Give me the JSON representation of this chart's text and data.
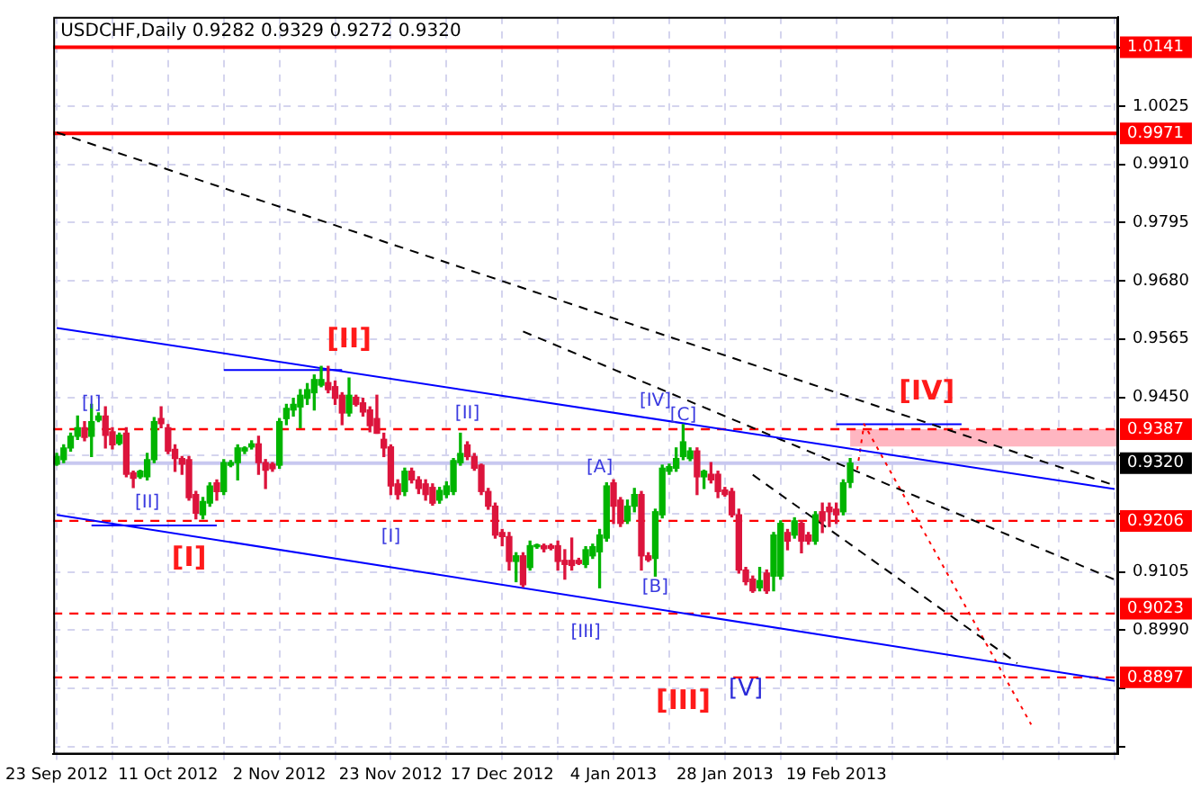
{
  "chart_data": {
    "type": "candlestick",
    "title": "USDCHF,Daily 0.9282 0.9329 0.9272 0.9320",
    "categories": [
      "23 Sep 2012",
      null,
      null,
      null,
      null,
      null,
      null,
      null,
      null,
      null,
      null,
      null,
      null,
      null,
      null,
      null,
      "11 Oct 2012",
      null,
      null,
      null,
      null,
      null,
      null,
      null,
      null,
      null,
      null,
      null,
      null,
      null,
      null,
      null,
      "2 Nov 2012",
      null,
      null,
      null,
      null,
      null,
      null,
      null,
      null,
      null,
      null,
      null,
      null,
      null,
      null,
      null,
      "23 Nov 2012",
      null,
      null,
      null,
      null,
      null,
      null,
      null,
      null,
      null,
      null,
      null,
      null,
      null,
      null,
      null,
      "17 Dec 2012",
      null,
      null,
      null,
      null,
      null,
      null,
      null,
      null,
      null,
      null,
      null,
      null,
      null,
      null,
      null,
      "4 Jan 2013",
      null,
      null,
      null,
      null,
      null,
      null,
      null,
      null,
      null,
      null,
      null,
      null,
      null,
      null,
      null,
      "28 Jan 2013",
      null,
      null,
      null,
      null,
      null,
      null,
      null,
      null,
      null,
      null,
      null,
      null,
      null,
      null,
      null,
      "19 Feb 2013",
      null,
      null,
      null,
      null,
      null,
      null,
      null,
      null,
      null,
      null,
      null,
      null,
      null,
      null,
      null,
      null,
      null,
      null,
      null,
      null,
      null,
      null,
      null,
      null,
      null,
      null,
      null,
      null,
      null,
      null,
      null,
      null,
      null,
      null,
      null,
      null,
      null,
      null,
      null,
      null
    ],
    "ohlc": [
      [
        0.9318,
        0.9339,
        0.9316,
        0.9333
      ],
      [
        0.9327,
        0.9356,
        0.9321,
        0.935
      ],
      [
        0.935,
        0.9379,
        0.9344,
        0.9373
      ],
      [
        0.9373,
        0.9413,
        0.9367,
        0.939
      ],
      [
        0.939,
        0.9402,
        0.9364,
        0.9371
      ],
      [
        0.9373,
        0.9436,
        0.9333,
        0.9402
      ],
      [
        0.9405,
        0.9419,
        0.9402,
        0.9413
      ],
      [
        0.9413,
        0.9431,
        0.935,
        0.9375
      ],
      [
        0.9382,
        0.939,
        0.9348,
        0.9356
      ],
      [
        0.9359,
        0.9379,
        0.9356,
        0.9375
      ],
      [
        0.9379,
        0.939,
        0.9293,
        0.9298
      ],
      [
        0.9301,
        0.9304,
        0.9272,
        0.929
      ],
      [
        0.9293,
        0.9306,
        0.929,
        0.9304
      ],
      [
        0.9293,
        0.9339,
        0.9287,
        0.9327
      ],
      [
        0.9327,
        0.941,
        0.9321,
        0.9402
      ],
      [
        0.9408,
        0.9431,
        0.939,
        0.9398
      ],
      [
        0.939,
        0.9396,
        0.9339,
        0.9344
      ],
      [
        0.9347,
        0.9356,
        0.9304,
        0.9329
      ],
      [
        0.9329,
        0.9333,
        0.9298,
        0.9318
      ],
      [
        0.9327,
        0.9333,
        0.9247,
        0.9252
      ],
      [
        0.9258,
        0.9264,
        0.921,
        0.9221
      ],
      [
        0.9218,
        0.9252,
        0.921,
        0.9244
      ],
      [
        0.9241,
        0.9281,
        0.9235,
        0.9275
      ],
      [
        0.9281,
        0.9287,
        0.9247,
        0.9264
      ],
      [
        0.9264,
        0.9327,
        0.9258,
        0.9321
      ],
      [
        0.9316,
        0.9325,
        0.9313,
        0.9321
      ],
      [
        0.9321,
        0.9356,
        0.9287,
        0.935
      ],
      [
        0.9344,
        0.9352,
        0.9339,
        0.935
      ],
      [
        0.9352,
        0.9364,
        0.9348,
        0.9358
      ],
      [
        0.9358,
        0.9373,
        0.9298,
        0.9321
      ],
      [
        0.9321,
        0.9327,
        0.927,
        0.9306
      ],
      [
        0.9318,
        0.9321,
        0.9304,
        0.9309
      ],
      [
        0.9316,
        0.9408,
        0.931,
        0.9402
      ],
      [
        0.9408,
        0.9436,
        0.9396,
        0.9428
      ],
      [
        0.9425,
        0.9448,
        0.9413,
        0.9436
      ],
      [
        0.9431,
        0.9465,
        0.939,
        0.9454
      ],
      [
        0.9448,
        0.9477,
        0.9436,
        0.9465
      ],
      [
        0.9459,
        0.9494,
        0.9425,
        0.9485
      ],
      [
        0.9474,
        0.9511,
        0.9471,
        0.9485
      ],
      [
        0.9479,
        0.9511,
        0.9459,
        0.9465
      ],
      [
        0.9471,
        0.9482,
        0.9436,
        0.9448
      ],
      [
        0.9454,
        0.9459,
        0.9396,
        0.9419
      ],
      [
        0.9419,
        0.9488,
        0.9413,
        0.9454
      ],
      [
        0.945,
        0.9454,
        0.9433,
        0.9436
      ],
      [
        0.9439,
        0.9448,
        0.9413,
        0.9421
      ],
      [
        0.9425,
        0.9431,
        0.9382,
        0.9394
      ],
      [
        0.9408,
        0.9454,
        0.9379,
        0.9379
      ],
      [
        0.9367,
        0.9379,
        0.9333,
        0.935
      ],
      [
        0.9352,
        0.9356,
        0.9258,
        0.9275
      ],
      [
        0.9279,
        0.9287,
        0.9249,
        0.9258
      ],
      [
        0.9264,
        0.931,
        0.9256,
        0.9304
      ],
      [
        0.9304,
        0.931,
        0.9281,
        0.9287
      ],
      [
        0.9287,
        0.9293,
        0.926,
        0.927
      ],
      [
        0.9279,
        0.9287,
        0.9247,
        0.9258
      ],
      [
        0.9272,
        0.9279,
        0.9237,
        0.9241
      ],
      [
        0.9247,
        0.9272,
        0.9241,
        0.9266
      ],
      [
        0.9258,
        0.9283,
        0.9252,
        0.9275
      ],
      [
        0.9264,
        0.9329,
        0.9258,
        0.9325
      ],
      [
        0.9321,
        0.9379,
        0.9316,
        0.9339
      ],
      [
        0.9356,
        0.9362,
        0.9327,
        0.9333
      ],
      [
        0.9333,
        0.9339,
        0.9306,
        0.931
      ],
      [
        0.9316,
        0.9318,
        0.9258,
        0.9264
      ],
      [
        0.9264,
        0.927,
        0.9229,
        0.9235
      ],
      [
        0.9235,
        0.9241,
        0.9172,
        0.9178
      ],
      [
        0.9183,
        0.9189,
        0.9157,
        0.9175
      ],
      [
        0.9175,
        0.9183,
        0.9109,
        0.9126
      ],
      [
        0.9126,
        0.9143,
        0.9086,
        0.9137
      ],
      [
        0.9137,
        0.9143,
        0.9076,
        0.908
      ],
      [
        0.9114,
        0.9166,
        0.9109,
        0.9157
      ],
      [
        0.9155,
        0.916,
        0.9152,
        0.9157
      ],
      [
        0.9157,
        0.916,
        0.9145,
        0.9151
      ],
      [
        0.9157,
        0.916,
        0.9149,
        0.9152
      ],
      [
        0.9157,
        0.9166,
        0.9109,
        0.9126
      ],
      [
        0.9128,
        0.9149,
        0.9091,
        0.912
      ],
      [
        0.9128,
        0.9172,
        0.9109,
        0.9118
      ],
      [
        0.9128,
        0.9132,
        0.912,
        0.9122
      ],
      [
        0.912,
        0.9155,
        0.9114,
        0.9149
      ],
      [
        0.9137,
        0.916,
        0.9132,
        0.9155
      ],
      [
        0.9145,
        0.9189,
        0.9074,
        0.9178
      ],
      [
        0.9172,
        0.9281,
        0.9166,
        0.9275
      ],
      [
        0.9281,
        0.9287,
        0.9201,
        0.9235
      ],
      [
        0.9247,
        0.9252,
        0.9195,
        0.9201
      ],
      [
        0.9206,
        0.9247,
        0.9201,
        0.9235
      ],
      [
        0.9235,
        0.927,
        0.9224,
        0.9258
      ],
      [
        0.9258,
        0.9264,
        0.9109,
        0.9137
      ],
      [
        0.9137,
        0.9143,
        0.9126,
        0.9129
      ],
      [
        0.9132,
        0.9229,
        0.9097,
        0.9224
      ],
      [
        0.9218,
        0.9316,
        0.9212,
        0.931
      ],
      [
        0.9304,
        0.9318,
        0.9298,
        0.9313
      ],
      [
        0.931,
        0.935,
        0.9304,
        0.9329
      ],
      [
        0.9333,
        0.9396,
        0.9327,
        0.9362
      ],
      [
        0.9329,
        0.935,
        0.9325,
        0.9344
      ],
      [
        0.9344,
        0.935,
        0.9258,
        0.9293
      ],
      [
        0.9293,
        0.9306,
        0.927,
        0.9304
      ],
      [
        0.9298,
        0.9321,
        0.9281,
        0.9287
      ],
      [
        0.9298,
        0.9304,
        0.9252,
        0.9264
      ],
      [
        0.9267,
        0.9272,
        0.9255,
        0.9258
      ],
      [
        0.9264,
        0.927,
        0.9214,
        0.9218
      ],
      [
        0.9218,
        0.9229,
        0.9103,
        0.9109
      ],
      [
        0.9109,
        0.9114,
        0.908,
        0.9086
      ],
      [
        0.9091,
        0.9097,
        0.9065,
        0.9068
      ],
      [
        0.9074,
        0.9114,
        0.9068,
        0.9088
      ],
      [
        0.9103,
        0.9109,
        0.9063,
        0.9068
      ],
      [
        0.9097,
        0.9183,
        0.9068,
        0.9178
      ],
      [
        0.9097,
        0.9206,
        0.9091,
        0.9201
      ],
      [
        0.9183,
        0.9189,
        0.9149,
        0.9166
      ],
      [
        0.9178,
        0.9212,
        0.9172,
        0.9206
      ],
      [
        0.9201,
        0.9206,
        0.9143,
        0.9166
      ],
      [
        0.9178,
        0.9183,
        0.916,
        0.9166
      ],
      [
        0.9166,
        0.9224,
        0.916,
        0.9218
      ],
      [
        0.9224,
        0.9241,
        0.9183,
        0.9206
      ],
      [
        0.9233,
        0.9241,
        0.9195,
        0.9224
      ],
      [
        0.9229,
        0.9241,
        0.9201,
        0.9218
      ],
      [
        0.9224,
        0.9287,
        0.9218,
        0.9281
      ],
      [
        0.9282,
        0.9329,
        0.9272,
        0.932
      ],
      null,
      null,
      null,
      null,
      null,
      null,
      null,
      null,
      null,
      null,
      null,
      null,
      null,
      null,
      null,
      null,
      null,
      null,
      null,
      null,
      null,
      null,
      null,
      null,
      null,
      null,
      null,
      null,
      null,
      null,
      null,
      null,
      null,
      null,
      null,
      null,
      null,
      null
    ],
    "series": [
      {
        "type": "line",
        "color": "#0000ff",
        "line_style": "solid",
        "values": [
          0.9587,
          null,
          null,
          null,
          null,
          null,
          null,
          null,
          null,
          null,
          null,
          null,
          null,
          null,
          null,
          null,
          null,
          null,
          null,
          null,
          null,
          null,
          null,
          null,
          null,
          null,
          null,
          null,
          null,
          null,
          null,
          null,
          null,
          null,
          null,
          null,
          null,
          null,
          null,
          null,
          null,
          null,
          null,
          null,
          null,
          null,
          null,
          null,
          null,
          null,
          null,
          null,
          null,
          null,
          null,
          null,
          null,
          null,
          null,
          null,
          null,
          null,
          null,
          null,
          null,
          null,
          null,
          null,
          null,
          null,
          null,
          null,
          null,
          null,
          null,
          null,
          null,
          null,
          null,
          null,
          null,
          null,
          null,
          null,
          null,
          null,
          null,
          null,
          null,
          null,
          null,
          null,
          null,
          null,
          null,
          null,
          null,
          null,
          null,
          null,
          null,
          null,
          null,
          null,
          null,
          null,
          null,
          null,
          null,
          null,
          null,
          null,
          null,
          null,
          null,
          null,
          null,
          null,
          null,
          null,
          null,
          null,
          null,
          null,
          null,
          null,
          null,
          null,
          null,
          null,
          null,
          null,
          null,
          null,
          null,
          null,
          null,
          null,
          null,
          null,
          null,
          null,
          null,
          null,
          null,
          null,
          null,
          null,
          null,
          null,
          null,
          null,
          0.9269
        ]
      },
      {
        "type": "line",
        "color": "#0000ff",
        "line_style": "solid",
        "values": [
          0.9218,
          null,
          null,
          null,
          null,
          null,
          null,
          null,
          null,
          null,
          null,
          null,
          null,
          null,
          null,
          null,
          null,
          null,
          null,
          null,
          null,
          null,
          null,
          null,
          null,
          null,
          null,
          null,
          null,
          null,
          null,
          null,
          null,
          null,
          null,
          null,
          null,
          null,
          null,
          null,
          null,
          null,
          null,
          null,
          null,
          null,
          null,
          null,
          null,
          null,
          null,
          null,
          null,
          null,
          null,
          null,
          null,
          null,
          null,
          null,
          null,
          null,
          null,
          null,
          null,
          null,
          null,
          null,
          null,
          null,
          null,
          null,
          null,
          null,
          null,
          null,
          null,
          null,
          null,
          null,
          null,
          null,
          null,
          null,
          null,
          null,
          null,
          null,
          null,
          null,
          null,
          null,
          null,
          null,
          null,
          null,
          null,
          null,
          null,
          null,
          null,
          null,
          null,
          null,
          null,
          null,
          null,
          null,
          null,
          null,
          null,
          null,
          null,
          null,
          null,
          null,
          null,
          null,
          null,
          null,
          null,
          null,
          null,
          null,
          null,
          null,
          null,
          null,
          null,
          null,
          null,
          null,
          null,
          null,
          null,
          null,
          null,
          null,
          null,
          null,
          null,
          null,
          null,
          null,
          null,
          null,
          null,
          null,
          null,
          null,
          null,
          null,
          0.889
        ]
      },
      {
        "type": "line",
        "color": "#000000",
        "line_style": "dashed",
        "values": [
          0.9973,
          null,
          null,
          null,
          null,
          null,
          null,
          null,
          null,
          null,
          null,
          null,
          null,
          null,
          null,
          null,
          null,
          null,
          null,
          null,
          null,
          null,
          null,
          null,
          null,
          null,
          null,
          null,
          null,
          null,
          null,
          null,
          null,
          null,
          null,
          null,
          null,
          null,
          null,
          null,
          null,
          null,
          null,
          null,
          null,
          null,
          null,
          null,
          null,
          null,
          null,
          null,
          null,
          null,
          null,
          null,
          null,
          null,
          null,
          null,
          null,
          null,
          null,
          null,
          null,
          null,
          null,
          null,
          null,
          null,
          null,
          null,
          null,
          null,
          null,
          null,
          null,
          null,
          null,
          null,
          null,
          null,
          null,
          null,
          null,
          null,
          null,
          null,
          null,
          null,
          null,
          null,
          null,
          null,
          null,
          null,
          null,
          null,
          null,
          null,
          null,
          null,
          null,
          null,
          null,
          null,
          null,
          null,
          null,
          null,
          null,
          null,
          null,
          null,
          null,
          null,
          null,
          null,
          null,
          null,
          null,
          null,
          null,
          null,
          null,
          null,
          null,
          null,
          null,
          null,
          null,
          null,
          null,
          null,
          null,
          null,
          null,
          null,
          null,
          null,
          null,
          null,
          null,
          null,
          null,
          null,
          null,
          null,
          null,
          null,
          null,
          null,
          0.9276
        ]
      },
      {
        "type": "line",
        "color": "#000000",
        "line_style": "dashed",
        "values": [
          null,
          null,
          null,
          null,
          null,
          null,
          null,
          null,
          null,
          null,
          null,
          null,
          null,
          null,
          null,
          null,
          null,
          null,
          null,
          null,
          null,
          null,
          null,
          null,
          null,
          null,
          null,
          null,
          null,
          null,
          null,
          null,
          null,
          null,
          null,
          null,
          null,
          null,
          null,
          null,
          null,
          null,
          null,
          null,
          null,
          null,
          null,
          null,
          null,
          null,
          null,
          null,
          null,
          null,
          null,
          null,
          null,
          null,
          null,
          null,
          null,
          null,
          null,
          null,
          null,
          null,
          null,
          0.958,
          null,
          null,
          null,
          null,
          null,
          null,
          null,
          null,
          null,
          null,
          null,
          null,
          null,
          null,
          null,
          null,
          null,
          null,
          null,
          null,
          null,
          null,
          null,
          null,
          null,
          null,
          null,
          null,
          null,
          null,
          null,
          null,
          null,
          null,
          null,
          null,
          null,
          null,
          null,
          null,
          null,
          null,
          null,
          null,
          null,
          null,
          null,
          null,
          null,
          null,
          null,
          null,
          null,
          null,
          null,
          null,
          null,
          null,
          null,
          null,
          null,
          null,
          null,
          null,
          null,
          null,
          null,
          null,
          null,
          null,
          null,
          null,
          null,
          null,
          null,
          null,
          null,
          null,
          null,
          null,
          null,
          null,
          null,
          null,
          0.909
        ]
      },
      {
        "type": "line",
        "color": "#000000",
        "line_style": "dashed",
        "values": [
          null,
          null,
          null,
          null,
          null,
          null,
          null,
          null,
          null,
          null,
          null,
          null,
          null,
          null,
          null,
          null,
          null,
          null,
          null,
          null,
          null,
          null,
          null,
          null,
          null,
          null,
          null,
          null,
          null,
          null,
          null,
          null,
          null,
          null,
          null,
          null,
          null,
          null,
          null,
          null,
          null,
          null,
          null,
          null,
          null,
          null,
          null,
          null,
          null,
          null,
          null,
          null,
          null,
          null,
          null,
          null,
          null,
          null,
          null,
          null,
          null,
          null,
          null,
          null,
          null,
          null,
          null,
          null,
          null,
          null,
          null,
          null,
          null,
          null,
          null,
          null,
          null,
          null,
          null,
          null,
          null,
          null,
          null,
          null,
          null,
          null,
          null,
          null,
          null,
          null,
          null,
          null,
          null,
          null,
          null,
          null,
          null,
          null,
          null,
          null,
          0.9297,
          null,
          null,
          null,
          null,
          null,
          null,
          null,
          null,
          null,
          null,
          null,
          null,
          null,
          null,
          null,
          null,
          null,
          null,
          null,
          null,
          null,
          null,
          null,
          null,
          null,
          null,
          null,
          null,
          null,
          null,
          null,
          null,
          null,
          null,
          null,
          null,
          null,
          0.8925,
          null,
          null,
          null,
          null,
          null,
          null,
          null,
          null,
          null,
          null,
          null,
          null,
          null,
          null
        ]
      },
      {
        "type": "line",
        "color": "#ff0000",
        "line_style": "dotted",
        "values": [
          null,
          null,
          null,
          null,
          null,
          null,
          null,
          null,
          null,
          null,
          null,
          null,
          null,
          null,
          null,
          null,
          null,
          null,
          null,
          null,
          null,
          null,
          null,
          null,
          null,
          null,
          null,
          null,
          null,
          null,
          null,
          null,
          null,
          null,
          null,
          null,
          null,
          null,
          null,
          null,
          null,
          null,
          null,
          null,
          null,
          null,
          null,
          null,
          null,
          null,
          null,
          null,
          null,
          null,
          null,
          null,
          null,
          null,
          null,
          null,
          null,
          null,
          null,
          null,
          null,
          null,
          null,
          null,
          null,
          null,
          null,
          null,
          null,
          null,
          null,
          null,
          null,
          null,
          null,
          null,
          null,
          null,
          null,
          null,
          null,
          null,
          null,
          null,
          null,
          null,
          null,
          null,
          null,
          null,
          null,
          null,
          null,
          null,
          null,
          null,
          null,
          null,
          null,
          null,
          null,
          null,
          null,
          null,
          null,
          null,
          null,
          null,
          null,
          null,
          null,
          0.9307,
          0.9397,
          null,
          null,
          null,
          null,
          null,
          null,
          null,
          null,
          null,
          null,
          null,
          null,
          null,
          null,
          null,
          null,
          null,
          null,
          null,
          null,
          null,
          null,
          null,
          0.8804,
          null,
          null,
          null,
          null,
          null,
          null,
          null,
          null,
          null,
          null,
          null,
          null
        ]
      },
      {
        "type": "line",
        "color": "#0000ff",
        "line_style": "solid",
        "values": [
          null,
          null,
          null,
          null,
          null,
          null,
          null,
          null,
          null,
          null,
          null,
          null,
          null,
          null,
          null,
          null,
          null,
          null,
          null,
          null,
          null,
          null,
          null,
          null,
          0.9504,
          null,
          null,
          null,
          null,
          null,
          null,
          null,
          null,
          null,
          null,
          null,
          null,
          null,
          null,
          null,
          null,
          0.9504,
          null,
          null,
          null,
          null,
          null,
          null,
          null,
          null,
          null,
          null,
          null,
          null,
          null,
          null,
          null,
          null,
          null,
          null,
          null,
          null,
          null,
          null,
          null,
          null,
          null,
          null,
          null,
          null,
          null,
          null,
          null,
          null,
          null,
          null,
          null,
          null,
          null,
          null,
          null,
          null,
          null,
          null,
          null,
          null,
          null,
          null,
          null,
          null,
          null,
          null,
          null,
          null,
          null,
          null,
          null,
          null,
          null,
          null,
          null,
          null,
          null,
          null,
          null,
          null,
          null,
          null,
          null,
          null,
          null,
          null,
          null,
          null,
          null,
          null,
          null,
          null,
          null,
          null,
          null,
          null,
          null,
          null,
          null,
          null,
          null,
          null,
          null,
          null,
          null,
          null,
          null,
          null,
          null,
          null,
          null,
          null,
          null,
          null,
          null,
          null,
          null,
          null,
          null,
          null,
          null,
          null,
          null,
          null,
          null,
          null,
          null
        ]
      },
      {
        "type": "line",
        "color": "#0000ff",
        "line_style": "solid",
        "values": [
          null,
          null,
          null,
          null,
          null,
          0.9197,
          null,
          null,
          null,
          null,
          null,
          null,
          null,
          null,
          null,
          null,
          null,
          null,
          null,
          null,
          null,
          null,
          null,
          0.9197,
          null,
          null,
          null,
          null,
          null,
          null,
          null,
          null,
          null,
          null,
          null,
          null,
          null,
          null,
          null,
          null,
          null,
          null,
          null,
          null,
          null,
          null,
          null,
          null,
          null,
          null,
          null,
          null,
          null,
          null,
          null,
          null,
          null,
          null,
          null,
          null,
          null,
          null,
          null,
          null,
          null,
          null,
          null,
          null,
          null,
          null,
          null,
          null,
          null,
          null,
          null,
          null,
          null,
          null,
          null,
          null,
          null,
          null,
          null,
          null,
          null,
          null,
          null,
          null,
          null,
          null,
          null,
          null,
          null,
          null,
          null,
          null,
          null,
          null,
          null,
          null,
          null,
          null,
          null,
          null,
          null,
          null,
          null,
          null,
          null,
          null,
          null,
          null,
          null,
          null,
          null,
          null,
          null,
          null,
          null,
          null,
          null,
          null,
          null,
          null,
          null,
          null,
          null,
          null,
          null,
          null,
          null,
          null,
          null,
          null,
          null,
          null,
          null,
          null,
          null,
          null,
          null,
          null,
          null,
          null,
          null,
          null,
          null,
          null,
          null,
          null,
          null,
          null,
          null
        ]
      },
      {
        "type": "line",
        "color": "#0000ff",
        "line_style": "solid",
        "values": [
          null,
          null,
          null,
          null,
          null,
          null,
          null,
          null,
          null,
          null,
          null,
          null,
          null,
          null,
          null,
          null,
          null,
          null,
          null,
          null,
          null,
          null,
          null,
          null,
          null,
          null,
          null,
          null,
          null,
          null,
          null,
          null,
          null,
          null,
          null,
          null,
          null,
          null,
          null,
          null,
          null,
          null,
          null,
          null,
          null,
          null,
          null,
          null,
          null,
          null,
          null,
          null,
          null,
          null,
          null,
          null,
          null,
          null,
          null,
          null,
          null,
          null,
          null,
          null,
          null,
          null,
          null,
          null,
          null,
          null,
          null,
          null,
          null,
          null,
          null,
          null,
          null,
          null,
          null,
          null,
          null,
          null,
          null,
          null,
          null,
          null,
          null,
          null,
          null,
          null,
          null,
          null,
          null,
          null,
          null,
          null,
          null,
          null,
          null,
          null,
          null,
          null,
          null,
          null,
          null,
          null,
          null,
          null,
          null,
          null,
          null,
          null,
          0.9397,
          null,
          null,
          null,
          null,
          null,
          null,
          null,
          null,
          null,
          null,
          null,
          null,
          null,
          null,
          null,
          null,
          null,
          0.9397,
          null,
          null,
          null,
          null,
          null,
          null,
          null,
          null,
          null,
          null,
          null,
          null,
          null,
          null,
          null,
          null,
          null,
          null,
          null,
          null,
          null,
          null
        ]
      }
    ],
    "ylim": [
      0.8745,
      1.0201
    ],
    "yticks": [
      {
        "value": 1.014,
        "label": null
      },
      1.0025,
      {
        "value": 0.991,
        "label": "0.9910"
      },
      0.9795,
      {
        "value": 0.968,
        "label": "0.9680"
      },
      0.9565,
      {
        "value": 0.945,
        "label": "0.9450"
      },
      {
        "value": 0.9335,
        "label": null
      },
      {
        "value": 0.922,
        "label": null
      },
      0.9105,
      {
        "value": 0.899,
        "label": "0.8990"
      },
      {
        "value": 0.8875,
        "label": null
      },
      {
        "value": 0.876,
        "label": null
      }
    ],
    "grid": true,
    "ref_lines": [
      {
        "axis": "y",
        "value": 1.0141,
        "label": "1.0141",
        "color": "#ff0000",
        "line_style": "solid"
      },
      {
        "axis": "y",
        "value": 0.9971,
        "label": "0.9971",
        "color": "#ff0000",
        "line_style": "solid"
      },
      {
        "axis": "y",
        "value": 0.9387,
        "label": "0.9387",
        "color": "#ff0000",
        "line_style": "dashed"
      },
      {
        "axis": "y",
        "value": 0.932,
        "label": "0.9320",
        "color": "#c8c8f0",
        "line_style": "solid"
      },
      {
        "axis": "y",
        "value": 0.9206,
        "label": "0.9206",
        "color": "#ff0000",
        "line_style": "dashed"
      },
      {
        "axis": "y",
        "value": 0.9023,
        "label": "0.9023",
        "color": "#ff0000",
        "line_style": "dashed"
      },
      {
        "axis": "y",
        "value": 0.8897,
        "label": "0.8897",
        "color": "#ff0000",
        "line_style": "dashed"
      }
    ],
    "bands": [
      {
        "axis": "y",
        "from": 0.9353,
        "to": 0.9387,
        "color": "#ffb6c1"
      }
    ],
    "annotations": [
      "[I]",
      "[II]",
      "[III]",
      "[IV]",
      "[I]",
      "[II]",
      "[I]",
      "[II]",
      "[A]",
      "[IV]",
      "[C]",
      "[B]",
      "[III]",
      "[V]"
    ],
    "legend": false
  }
}
